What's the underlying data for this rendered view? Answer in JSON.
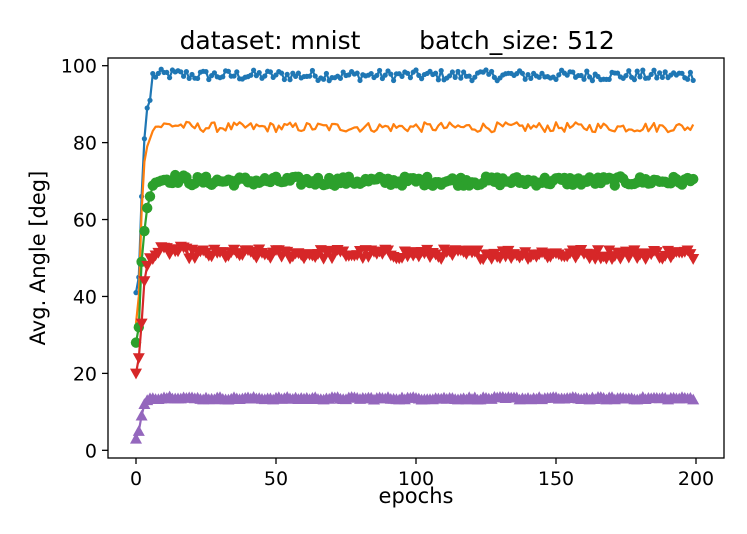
{
  "chart_data": {
    "type": "line",
    "title_left": "dataset: mnist",
    "title_right": "batch_size: 512",
    "xlabel": "epochs",
    "ylabel": "Avg. Angle [deg]",
    "xlim": [
      -10,
      210
    ],
    "ylim": [
      -2,
      102
    ],
    "xticks": [
      0,
      50,
      100,
      150,
      200
    ],
    "yticks": [
      0,
      20,
      40,
      60,
      80,
      100
    ],
    "series": [
      {
        "name": "series-blue",
        "color": "#1f77b4",
        "marker": "point",
        "start": [
          41,
          45,
          66,
          81,
          89,
          91
        ],
        "plateau": {
          "start_value": 97.5,
          "end_value": 94.5,
          "jitter": 1.4,
          "peak": 98
        }
      },
      {
        "name": "series-orange",
        "color": "#ff7f0e",
        "marker": "none",
        "start": [
          33,
          40,
          62,
          75,
          79,
          81
        ],
        "plateau": {
          "start_value": 84,
          "end_value": 81,
          "jitter": 1.3,
          "peak": 85
        }
      },
      {
        "name": "series-green",
        "color": "#2ca02c",
        "marker": "circle",
        "start": [
          28,
          32,
          49,
          57,
          63,
          66
        ],
        "plateau": {
          "start_value": 70,
          "end_value": 66.5,
          "jitter": 1.2,
          "peak": 71
        }
      },
      {
        "name": "series-red",
        "color": "#d62728",
        "marker": "triangle-down",
        "start": [
          20,
          24,
          33,
          44,
          48,
          50
        ],
        "plateau": {
          "start_value": 51,
          "end_value": 47.5,
          "jitter": 1.3,
          "peak": 52.5
        }
      },
      {
        "name": "series-purple",
        "color": "#9467bd",
        "marker": "triangle-up",
        "start": [
          3,
          5,
          9,
          12,
          13,
          13.5
        ],
        "plateau": {
          "start_value": 13.5,
          "end_value": 10.5,
          "jitter": 0.35,
          "peak": 14
        }
      }
    ],
    "grid": false,
    "legend": "none",
    "num_epochs": 200
  }
}
